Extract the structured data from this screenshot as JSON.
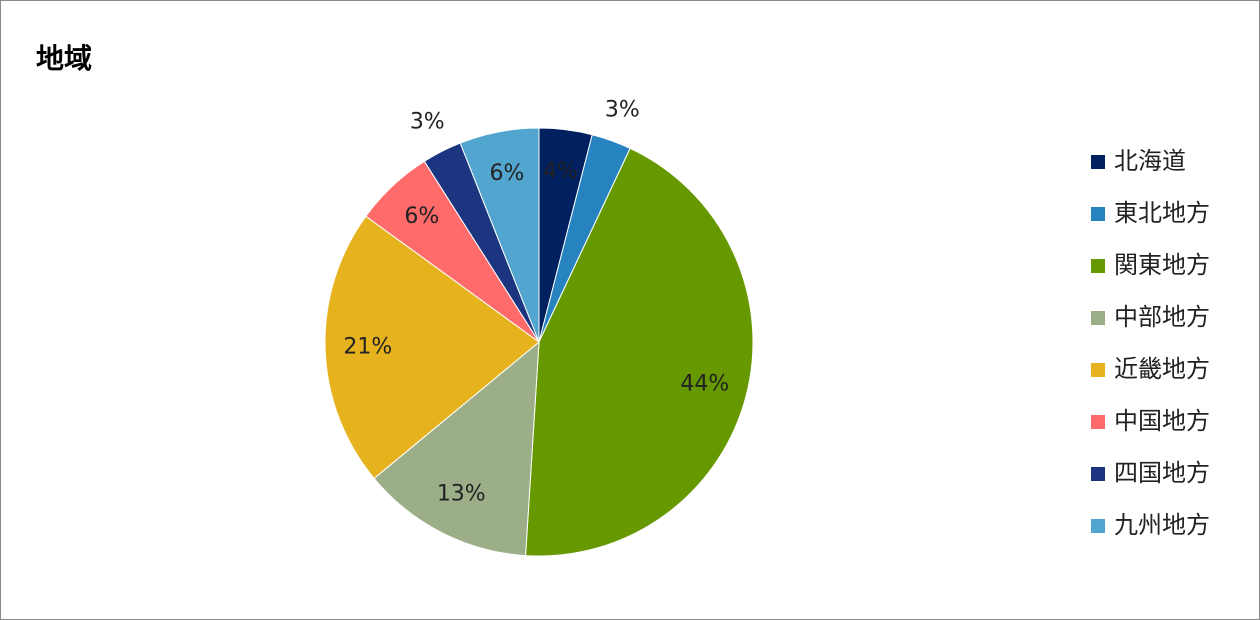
{
  "chart_data": {
    "type": "pie",
    "title": "地域",
    "categories": [
      "北海道",
      "東北地方",
      "関東地方",
      "中部地方",
      "近畿地方",
      "中国地方",
      "四国地方",
      "九州地方"
    ],
    "values": [
      4,
      3,
      44,
      13,
      21,
      6,
      3,
      6
    ],
    "value_labels": [
      "4%",
      "3%",
      "44%",
      "13%",
      "21%",
      "6%",
      "3%",
      "6%"
    ],
    "colors": [
      "#002060",
      "#2683c0",
      "#669900",
      "#9bae88",
      "#e6b31e",
      "#ff6b6b",
      "#1c3580",
      "#52a5cf"
    ],
    "legend": "right"
  }
}
